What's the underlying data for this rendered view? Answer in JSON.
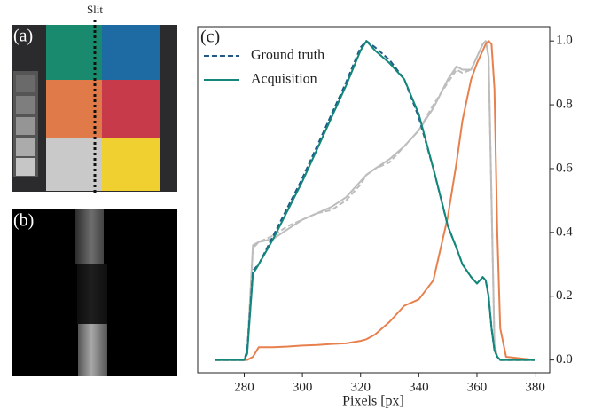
{
  "panels": {
    "a": {
      "label": "(a)",
      "annotation": "Slit"
    },
    "b": {
      "label": "(b)"
    }
  },
  "chart_data": {
    "type": "line",
    "label": "(c)",
    "x_label": "Pixels [px]",
    "x": [
      270,
      280,
      281,
      283,
      285,
      290,
      295,
      300,
      305,
      310,
      315,
      320,
      322,
      325,
      330,
      335,
      340,
      345,
      350,
      353,
      355,
      358,
      360,
      362,
      363,
      364,
      365,
      366,
      367,
      368,
      370,
      380
    ],
    "series": [
      {
        "color": "#bdbdbd",
        "dashed": true,
        "values": [
          0,
          0,
          0.02,
          0.35,
          0.37,
          0.39,
          0.42,
          0.44,
          0.46,
          0.47,
          0.5,
          0.55,
          0.58,
          0.6,
          0.62,
          0.67,
          0.72,
          0.8,
          0.87,
          0.91,
          0.9,
          0.91,
          0.95,
          0.99,
          1.0,
          0.95,
          0.5,
          0.05,
          0.01,
          0,
          0,
          0
        ]
      },
      {
        "color": "#bdbdbd",
        "values": [
          0,
          0,
          0.02,
          0.36,
          0.37,
          0.38,
          0.41,
          0.44,
          0.46,
          0.48,
          0.51,
          0.56,
          0.58,
          0.6,
          0.63,
          0.67,
          0.72,
          0.79,
          0.88,
          0.92,
          0.91,
          0.91,
          0.95,
          0.99,
          1.0,
          0.95,
          0.5,
          0.05,
          0.01,
          0,
          0,
          0
        ]
      },
      {
        "color": "#e8804e",
        "values": [
          0,
          0,
          0,
          0.01,
          0.04,
          0.04,
          0.042,
          0.045,
          0.047,
          0.05,
          0.052,
          0.06,
          0.065,
          0.08,
          0.12,
          0.17,
          0.19,
          0.25,
          0.45,
          0.62,
          0.75,
          0.88,
          0.93,
          0.97,
          0.99,
          1.0,
          0.99,
          0.85,
          0.4,
          0.1,
          0.01,
          0
        ]
      },
      {
        "name": "Ground truth",
        "color": "#1f5a8a",
        "dashed": true,
        "values": [
          0,
          0,
          0.03,
          0.28,
          0.3,
          0.39,
          0.48,
          0.57,
          0.67,
          0.77,
          0.87,
          0.98,
          1.0,
          0.98,
          0.94,
          0.88,
          0.76,
          0.6,
          0.42,
          0.35,
          0.3,
          0.26,
          0.24,
          0.26,
          0.25,
          0.2,
          0.1,
          0.03,
          0.01,
          0,
          0,
          0
        ]
      },
      {
        "name": "Acquisition",
        "color": "#12877a",
        "values": [
          0,
          0,
          0.02,
          0.27,
          0.3,
          0.38,
          0.47,
          0.56,
          0.66,
          0.76,
          0.86,
          0.97,
          1.0,
          0.97,
          0.93,
          0.88,
          0.77,
          0.6,
          0.42,
          0.35,
          0.3,
          0.26,
          0.24,
          0.26,
          0.25,
          0.2,
          0.1,
          0.03,
          0.01,
          0,
          0,
          0
        ]
      }
    ],
    "xlim": [
      264,
      385
    ],
    "ylim": [
      -0.04,
      1.045
    ],
    "xticks": [
      280,
      300,
      320,
      340,
      360,
      380
    ],
    "yticks": [
      {
        "value": 0,
        "label": "0.0"
      },
      0.2,
      0.4,
      0.6,
      0.8,
      {
        "value": 1,
        "label": "1.0"
      }
    ],
    "legend": "upper left"
  }
}
